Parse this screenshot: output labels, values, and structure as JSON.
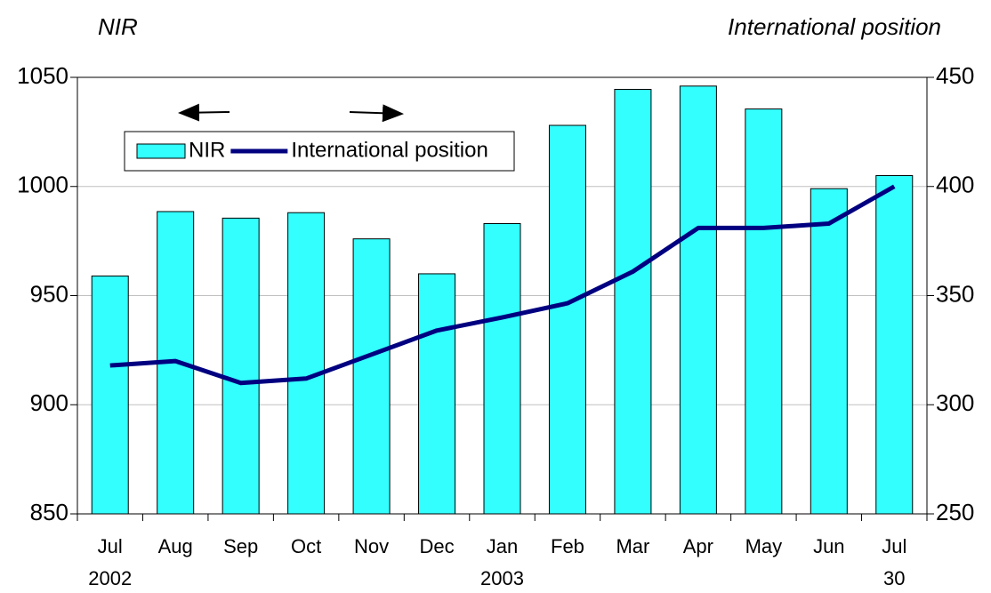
{
  "chart_data": {
    "type": "bar_line",
    "y_title": "NIR",
    "y2_title": "International position",
    "categories": [
      [
        "Jul",
        "2002"
      ],
      [
        "Aug"
      ],
      [
        "Sep"
      ],
      [
        "Oct"
      ],
      [
        "Nov"
      ],
      [
        "Dec"
      ],
      [
        "Jan",
        "2003"
      ],
      [
        "Feb"
      ],
      [
        "Mar"
      ],
      [
        "Apr"
      ],
      [
        "May"
      ],
      [
        "Jun"
      ],
      [
        "Jul",
        "30"
      ]
    ],
    "series": [
      {
        "name": "NIR",
        "type": "bar",
        "color": "#33ffff",
        "values": [
          959,
          988.5,
          985.5,
          988,
          976,
          960,
          983,
          1028,
          1044.5,
          1046,
          1035.5,
          999,
          1005
        ]
      },
      {
        "name": "International position",
        "type": "line",
        "axis": "y2",
        "color": "#000080",
        "values": [
          318,
          320,
          310,
          312,
          323,
          334,
          340,
          346.5,
          361,
          381,
          381,
          383,
          400
        ]
      }
    ],
    "ylim": [
      850,
      1050
    ],
    "yticks": [
      850,
      900,
      950,
      1000,
      1050
    ],
    "y2lim": [
      250,
      450
    ],
    "y2ticks": [
      250,
      300,
      350,
      400,
      450
    ],
    "grid": true,
    "legend": "upper left"
  }
}
